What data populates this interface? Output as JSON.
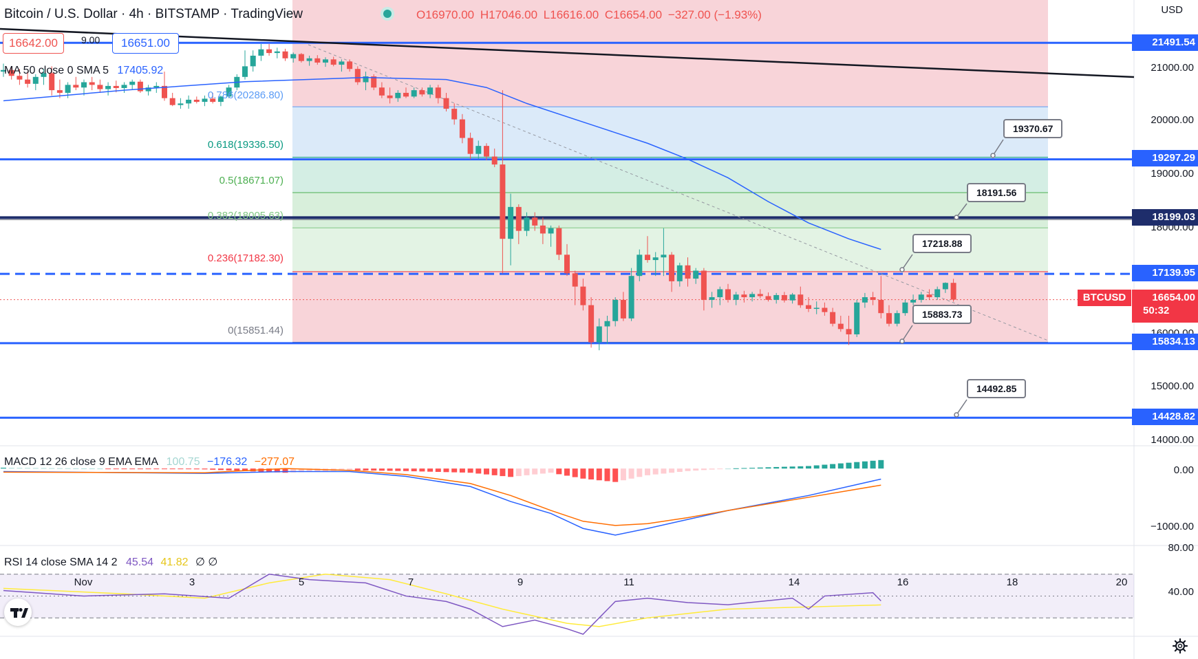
{
  "header": {
    "symbol": "Bitcoin / U.S. Dollar · 4h · BITSTAMP · TradingView",
    "open": "O16970.00",
    "high": "H17046.00",
    "low": "L16616.00",
    "close": "C16654.00",
    "change": "−327.00 (−1.93%)",
    "currency": "USD",
    "bid": "16642.00",
    "spread": "9.00",
    "ask": "16651.00"
  },
  "legends": {
    "ma": "MA 50 close 0 SMA 5",
    "ma_value": "17405.92",
    "macd": "MACD 12 26 close 9 EMA EMA",
    "macd_hist": "100.75",
    "macd_line": "−176.32",
    "macd_signal": "−277.07",
    "rsi": "RSI 14 close SMA 14 2",
    "rsi_value": "45.54",
    "rsi_sma": "41.82",
    "rsi_extra": "∅ ∅"
  },
  "fib_labels": {
    "f786": "0.786(20286.80)",
    "f618": "0.618(19336.50)",
    "f5": "0.5(18671.07)",
    "f382": "0.382(18005.63)",
    "f236": "0.236(17182.30)",
    "f0": "0(15851.44)"
  },
  "price_tags": {
    "t1": "21491.54",
    "t2": "19297.29",
    "t3": "18199.03",
    "t4": "17139.95",
    "btc_symbol": "BTCUSD",
    "btc_price": "16654.00",
    "btc_time": "50:32",
    "t5": "15834.13",
    "t6": "14428.82"
  },
  "notes": {
    "n1": "19370.67",
    "n2": "18191.56",
    "n3": "17218.88",
    "n4": "15883.73",
    "n5": "14492.85"
  },
  "y_axis": [
    "21000.00",
    "20000.00",
    "19000.00",
    "18000.00",
    "16000.00",
    "15000.00",
    "14000.00"
  ],
  "macd_axis": [
    "0.00",
    "−1000.00"
  ],
  "rsi_axis": [
    "80.00",
    "40.00"
  ],
  "x_axis": [
    "Nov",
    "3",
    "5",
    "7",
    "9",
    "11",
    "14",
    "16",
    "18",
    "20"
  ],
  "colors": {
    "up": "#26a69a",
    "down": "#ef5350",
    "level": "#2962ff",
    "ma": "#2962ff",
    "macd_signal": "#ff6d00",
    "rsi": "#7e57c2",
    "rsi_sma": "#ffeb3b"
  },
  "icons": {
    "logo": "tradingview-logo-icon",
    "settings": "gear-icon",
    "status": "market-open-dot-icon"
  },
  "chart_data": {
    "type": "candlestick",
    "timeframe": "4h",
    "price_range": [
      13950,
      21900
    ],
    "candles": [
      {
        "o": 20950,
        "h": 21100,
        "l": 20850,
        "c": 20980
      },
      {
        "o": 20980,
        "h": 21050,
        "l": 20800,
        "c": 20870
      },
      {
        "o": 20870,
        "h": 21000,
        "l": 20700,
        "c": 20800
      },
      {
        "o": 20800,
        "h": 20950,
        "l": 20650,
        "c": 20720
      },
      {
        "o": 20720,
        "h": 20900,
        "l": 20600,
        "c": 20850
      },
      {
        "o": 20850,
        "h": 21000,
        "l": 20700,
        "c": 20920
      },
      {
        "o": 20920,
        "h": 21050,
        "l": 20500,
        "c": 20600
      },
      {
        "o": 20600,
        "h": 20800,
        "l": 20450,
        "c": 20550
      },
      {
        "o": 20550,
        "h": 20750,
        "l": 20450,
        "c": 20700
      },
      {
        "o": 20700,
        "h": 20850,
        "l": 20600,
        "c": 20650
      },
      {
        "o": 20650,
        "h": 20800,
        "l": 20500,
        "c": 20750
      },
      {
        "o": 20750,
        "h": 20850,
        "l": 20600,
        "c": 20700
      },
      {
        "o": 20700,
        "h": 20800,
        "l": 20550,
        "c": 20620
      },
      {
        "o": 20620,
        "h": 20750,
        "l": 20500,
        "c": 20680
      },
      {
        "o": 20680,
        "h": 20780,
        "l": 20560,
        "c": 20640
      },
      {
        "o": 20640,
        "h": 20750,
        "l": 20550,
        "c": 20700
      },
      {
        "o": 20700,
        "h": 20800,
        "l": 20620,
        "c": 20760
      },
      {
        "o": 20760,
        "h": 20800,
        "l": 20550,
        "c": 20580
      },
      {
        "o": 20580,
        "h": 20700,
        "l": 20500,
        "c": 20650
      },
      {
        "o": 20650,
        "h": 20750,
        "l": 20550,
        "c": 20680
      },
      {
        "o": 20680,
        "h": 20950,
        "l": 20400,
        "c": 20450
      },
      {
        "o": 20450,
        "h": 20550,
        "l": 20300,
        "c": 20320
      },
      {
        "o": 20320,
        "h": 20450,
        "l": 20250,
        "c": 20350
      },
      {
        "o": 20350,
        "h": 20500,
        "l": 20250,
        "c": 20420
      },
      {
        "o": 20420,
        "h": 20480,
        "l": 20350,
        "c": 20380
      },
      {
        "o": 20380,
        "h": 20500,
        "l": 20300,
        "c": 20440
      },
      {
        "o": 20440,
        "h": 20550,
        "l": 20350,
        "c": 20380
      },
      {
        "o": 20380,
        "h": 20500,
        "l": 20300,
        "c": 20480
      },
      {
        "o": 20480,
        "h": 20700,
        "l": 20450,
        "c": 20650
      },
      {
        "o": 20650,
        "h": 20900,
        "l": 20600,
        "c": 20850
      },
      {
        "o": 20850,
        "h": 21350,
        "l": 20800,
        "c": 21050
      },
      {
        "o": 21050,
        "h": 21350,
        "l": 20950,
        "c": 21250
      },
      {
        "o": 21250,
        "h": 21470,
        "l": 21150,
        "c": 21370
      },
      {
        "o": 21370,
        "h": 21470,
        "l": 21250,
        "c": 21300
      },
      {
        "o": 21300,
        "h": 21400,
        "l": 21200,
        "c": 21330
      },
      {
        "o": 21330,
        "h": 21380,
        "l": 21150,
        "c": 21200
      },
      {
        "o": 21200,
        "h": 21310,
        "l": 21120,
        "c": 21280
      },
      {
        "o": 21280,
        "h": 21300,
        "l": 21120,
        "c": 21150
      },
      {
        "o": 21150,
        "h": 21250,
        "l": 21060,
        "c": 21200
      },
      {
        "o": 21200,
        "h": 21260,
        "l": 21080,
        "c": 21120
      },
      {
        "o": 21120,
        "h": 21220,
        "l": 21040,
        "c": 21180
      },
      {
        "o": 21180,
        "h": 21230,
        "l": 21050,
        "c": 21080
      },
      {
        "o": 21080,
        "h": 21180,
        "l": 20950,
        "c": 21140
      },
      {
        "o": 21140,
        "h": 21180,
        "l": 20950,
        "c": 21000
      },
      {
        "o": 21000,
        "h": 21050,
        "l": 20700,
        "c": 20750
      },
      {
        "o": 20750,
        "h": 20950,
        "l": 20600,
        "c": 20860
      },
      {
        "o": 20860,
        "h": 20900,
        "l": 20600,
        "c": 20650
      },
      {
        "o": 20650,
        "h": 20750,
        "l": 20450,
        "c": 20500
      },
      {
        "o": 20500,
        "h": 20650,
        "l": 20350,
        "c": 20450
      },
      {
        "o": 20450,
        "h": 20600,
        "l": 20380,
        "c": 20550
      },
      {
        "o": 20550,
        "h": 20650,
        "l": 20450,
        "c": 20480
      },
      {
        "o": 20480,
        "h": 20650,
        "l": 20450,
        "c": 20600
      },
      {
        "o": 20600,
        "h": 20650,
        "l": 20480,
        "c": 20520
      },
      {
        "o": 20520,
        "h": 20700,
        "l": 20450,
        "c": 20650
      },
      {
        "o": 20650,
        "h": 20700,
        "l": 20350,
        "c": 20450
      },
      {
        "o": 20450,
        "h": 20550,
        "l": 20200,
        "c": 20250
      },
      {
        "o": 20250,
        "h": 20350,
        "l": 19950,
        "c": 20050
      },
      {
        "o": 20050,
        "h": 20150,
        "l": 19600,
        "c": 19700
      },
      {
        "o": 19700,
        "h": 19800,
        "l": 19300,
        "c": 19400
      },
      {
        "o": 19400,
        "h": 19650,
        "l": 19300,
        "c": 19550
      },
      {
        "o": 19550,
        "h": 19600,
        "l": 19280,
        "c": 19350
      },
      {
        "o": 19350,
        "h": 19500,
        "l": 19150,
        "c": 19200
      },
      {
        "o": 19200,
        "h": 20600,
        "l": 17150,
        "c": 17800
      },
      {
        "o": 17800,
        "h": 18650,
        "l": 17300,
        "c": 18400
      },
      {
        "o": 18400,
        "h": 18450,
        "l": 17700,
        "c": 17950
      },
      {
        "o": 17950,
        "h": 18300,
        "l": 17850,
        "c": 18200
      },
      {
        "o": 18200,
        "h": 18300,
        "l": 17950,
        "c": 18050
      },
      {
        "o": 18050,
        "h": 18200,
        "l": 17700,
        "c": 17900
      },
      {
        "o": 17900,
        "h": 18050,
        "l": 17650,
        "c": 18000
      },
      {
        "o": 18000,
        "h": 18050,
        "l": 17400,
        "c": 17500
      },
      {
        "o": 17500,
        "h": 17700,
        "l": 17100,
        "c": 17150
      },
      {
        "o": 17150,
        "h": 17200,
        "l": 16550,
        "c": 16900
      },
      {
        "o": 16900,
        "h": 17050,
        "l": 16450,
        "c": 16550
      },
      {
        "o": 16550,
        "h": 16700,
        "l": 15750,
        "c": 15850
      },
      {
        "o": 15850,
        "h": 16300,
        "l": 15700,
        "c": 16150
      },
      {
        "o": 16150,
        "h": 16350,
        "l": 15820,
        "c": 16250
      },
      {
        "o": 16250,
        "h": 16700,
        "l": 16150,
        "c": 16650
      },
      {
        "o": 16650,
        "h": 16800,
        "l": 16250,
        "c": 16300
      },
      {
        "o": 16300,
        "h": 17250,
        "l": 16250,
        "c": 17100
      },
      {
        "o": 17100,
        "h": 17600,
        "l": 17000,
        "c": 17500
      },
      {
        "o": 17500,
        "h": 17850,
        "l": 17350,
        "c": 17400
      },
      {
        "o": 17400,
        "h": 17550,
        "l": 17100,
        "c": 17450
      },
      {
        "o": 17450,
        "h": 18000,
        "l": 17100,
        "c": 17500
      },
      {
        "o": 17500,
        "h": 17550,
        "l": 16800,
        "c": 17000
      },
      {
        "o": 17000,
        "h": 17350,
        "l": 16900,
        "c": 17300
      },
      {
        "o": 17300,
        "h": 17450,
        "l": 16900,
        "c": 17050
      },
      {
        "o": 17050,
        "h": 17250,
        "l": 16950,
        "c": 17200
      },
      {
        "o": 17200,
        "h": 17250,
        "l": 16450,
        "c": 16650
      },
      {
        "o": 16650,
        "h": 16800,
        "l": 16500,
        "c": 16700
      },
      {
        "o": 16700,
        "h": 16900,
        "l": 16550,
        "c": 16850
      },
      {
        "o": 16850,
        "h": 16950,
        "l": 16600,
        "c": 16650
      },
      {
        "o": 16650,
        "h": 16800,
        "l": 16550,
        "c": 16750
      },
      {
        "o": 16750,
        "h": 16820,
        "l": 16600,
        "c": 16700
      },
      {
        "o": 16700,
        "h": 16800,
        "l": 16620,
        "c": 16760
      },
      {
        "o": 16760,
        "h": 16850,
        "l": 16680,
        "c": 16720
      },
      {
        "o": 16720,
        "h": 16790,
        "l": 16620,
        "c": 16650
      },
      {
        "o": 16650,
        "h": 16780,
        "l": 16580,
        "c": 16740
      },
      {
        "o": 16740,
        "h": 16800,
        "l": 16600,
        "c": 16640
      },
      {
        "o": 16640,
        "h": 16780,
        "l": 16580,
        "c": 16750
      },
      {
        "o": 16750,
        "h": 16900,
        "l": 16500,
        "c": 16550
      },
      {
        "o": 16550,
        "h": 16700,
        "l": 16420,
        "c": 16480
      },
      {
        "o": 16480,
        "h": 16620,
        "l": 16380,
        "c": 16500
      },
      {
        "o": 16500,
        "h": 16600,
        "l": 16350,
        "c": 16420
      },
      {
        "o": 16420,
        "h": 16500,
        "l": 16150,
        "c": 16200
      },
      {
        "o": 16200,
        "h": 16350,
        "l": 16050,
        "c": 16100
      },
      {
        "o": 16100,
        "h": 16350,
        "l": 15800,
        "c": 16000
      },
      {
        "o": 16000,
        "h": 16650,
        "l": 15950,
        "c": 16600
      },
      {
        "o": 16600,
        "h": 16780,
        "l": 16500,
        "c": 16700
      },
      {
        "o": 16700,
        "h": 16800,
        "l": 16550,
        "c": 16650
      },
      {
        "o": 16650,
        "h": 17100,
        "l": 16300,
        "c": 16400
      },
      {
        "o": 16400,
        "h": 16550,
        "l": 16150,
        "c": 16200
      },
      {
        "o": 16200,
        "h": 16450,
        "l": 16150,
        "c": 16400
      },
      {
        "o": 16400,
        "h": 16650,
        "l": 16350,
        "c": 16600
      },
      {
        "o": 16600,
        "h": 16750,
        "l": 16550,
        "c": 16650
      },
      {
        "o": 16650,
        "h": 16800,
        "l": 16600,
        "c": 16750
      },
      {
        "o": 16750,
        "h": 16850,
        "l": 16650,
        "c": 16700
      },
      {
        "o": 16700,
        "h": 16900,
        "l": 16650,
        "c": 16850
      },
      {
        "o": 16850,
        "h": 16980,
        "l": 16780,
        "c": 16970
      },
      {
        "o": 16970,
        "h": 17046,
        "l": 16616,
        "c": 16654
      }
    ],
    "ma50": [
      [
        0,
        20400
      ],
      [
        15,
        20600
      ],
      [
        30,
        20760
      ],
      [
        45,
        20840
      ],
      [
        55,
        20800
      ],
      [
        60,
        20650
      ],
      [
        65,
        20350
      ],
      [
        70,
        20100
      ],
      [
        75,
        19850
      ],
      [
        80,
        19600
      ],
      [
        85,
        19300
      ],
      [
        90,
        18950
      ],
      [
        95,
        18500
      ],
      [
        100,
        18100
      ],
      [
        105,
        17800
      ],
      [
        109,
        17600
      ]
    ],
    "horizontal_levels": [
      21491.54,
      19297.29,
      18199.03,
      17139.95,
      15834.13,
      14428.82
    ],
    "fib_levels": {
      "0.786": 20286.8,
      "0.618": 19336.5,
      "0.5": 18671.07,
      "0.382": 18005.63,
      "0.236": 17182.3,
      "0": 15851.44
    },
    "notes": [
      19370.67,
      18191.56,
      17218.88,
      15883.73,
      14492.85
    ],
    "macd": {
      "range": [
        -1250,
        300
      ],
      "line": [
        [
          0,
          -50
        ],
        [
          25,
          -80
        ],
        [
          35,
          -50
        ],
        [
          43,
          -50
        ],
        [
          50,
          -130
        ],
        [
          58,
          -300
        ],
        [
          63,
          -550
        ],
        [
          68,
          -750
        ],
        [
          72,
          -1000
        ],
        [
          76,
          -1110
        ],
        [
          80,
          -1000
        ],
        [
          85,
          -850
        ],
        [
          90,
          -700
        ],
        [
          100,
          -450
        ],
        [
          109,
          -176
        ]
      ],
      "signal": [
        [
          0,
          -60
        ],
        [
          25,
          -70
        ],
        [
          35,
          0
        ],
        [
          43,
          -30
        ],
        [
          50,
          -100
        ],
        [
          58,
          -250
        ],
        [
          63,
          -450
        ],
        [
          68,
          -700
        ],
        [
          72,
          -880
        ],
        [
          76,
          -950
        ],
        [
          80,
          -920
        ],
        [
          85,
          -820
        ],
        [
          90,
          -700
        ],
        [
          100,
          -480
        ],
        [
          109,
          -277
        ]
      ]
    },
    "rsi": {
      "range": [
        15,
        95
      ],
      "line": [
        [
          0,
          55
        ],
        [
          10,
          50
        ],
        [
          20,
          52
        ],
        [
          28,
          48
        ],
        [
          33,
          70
        ],
        [
          38,
          65
        ],
        [
          45,
          62
        ],
        [
          50,
          50
        ],
        [
          55,
          45
        ],
        [
          58,
          38
        ],
        [
          62,
          22
        ],
        [
          66,
          28
        ],
        [
          70,
          20
        ],
        [
          72,
          15
        ],
        [
          74,
          30
        ],
        [
          76,
          45
        ],
        [
          80,
          48
        ],
        [
          85,
          44
        ],
        [
          90,
          42
        ],
        [
          98,
          48
        ],
        [
          100,
          38
        ],
        [
          102,
          50
        ],
        [
          108,
          53
        ],
        [
          109,
          45.54
        ]
      ],
      "sma": [
        [
          0,
          57
        ],
        [
          15,
          52
        ],
        [
          25,
          48
        ],
        [
          33,
          62
        ],
        [
          40,
          70
        ],
        [
          48,
          65
        ],
        [
          55,
          52
        ],
        [
          62,
          38
        ],
        [
          70,
          25
        ],
        [
          74,
          22
        ],
        [
          80,
          30
        ],
        [
          90,
          38
        ],
        [
          100,
          40
        ],
        [
          109,
          41.82
        ]
      ]
    }
  }
}
